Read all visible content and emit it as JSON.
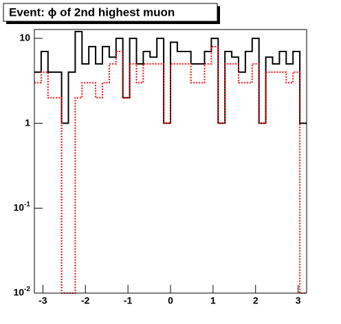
{
  "chart_data": {
    "type": "histogram",
    "title": "Event: ϕ of 2nd highest muon",
    "bins": [
      -3.2,
      -3.04,
      -2.88,
      -2.72,
      -2.56,
      -2.4,
      -2.24,
      -2.08,
      -1.92,
      -1.76,
      -1.6,
      -1.44,
      -1.28,
      -1.12,
      -0.96,
      -0.8,
      -0.64,
      -0.48,
      -0.32,
      -0.16,
      0,
      0.16,
      0.32,
      0.48,
      0.64,
      0.8,
      0.96,
      1.12,
      1.28,
      1.44,
      1.6,
      1.76,
      1.92,
      2.08,
      2.24,
      2.4,
      2.56,
      2.72,
      2.88,
      3.04,
      3.2
    ],
    "series": [
      {
        "color": "#000000",
        "style": "solid",
        "values": [
          4,
          7,
          4,
          4,
          1,
          4,
          12,
          5,
          8,
          5,
          8,
          6,
          10,
          2,
          10,
          5,
          7,
          6,
          10,
          1,
          9,
          7,
          7,
          5,
          5,
          7,
          10,
          1,
          7,
          6,
          4,
          7,
          10,
          1,
          6,
          5,
          7,
          5,
          7,
          1
        ]
      },
      {
        "color": "#ff0000",
        "style": "dotted",
        "values": [
          3,
          4,
          2,
          2,
          0,
          0,
          2,
          3,
          3,
          2,
          3,
          5,
          7,
          2,
          5,
          3,
          5,
          5,
          5,
          1,
          5,
          5,
          5,
          3,
          3,
          5,
          8,
          1,
          5,
          5,
          3,
          3,
          5,
          1,
          4,
          4,
          4,
          3,
          4,
          0
        ]
      }
    ],
    "xlim": [
      -3.2,
      3.2
    ],
    "ylim": [
      0.01,
      12.7
    ],
    "log_y": true,
    "xticks": [
      -3,
      -2,
      -1,
      0,
      1,
      2,
      3
    ],
    "yticks": [
      {
        "value": 0.01,
        "label": "10^-2"
      },
      {
        "value": 0.1,
        "label": "10^-1"
      },
      1,
      10
    ]
  }
}
